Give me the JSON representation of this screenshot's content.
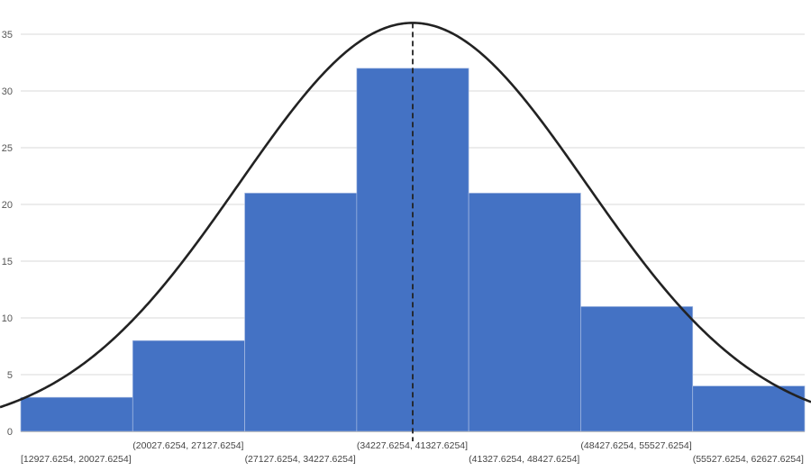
{
  "chart_data": {
    "type": "bar",
    "subtype": "histogram-with-normal-curve",
    "title": "",
    "xlabel": "",
    "ylabel": "",
    "ylim": [
      0,
      35
    ],
    "yticks": [
      0,
      5,
      10,
      15,
      20,
      25,
      30,
      35
    ],
    "grid": true,
    "categories": [
      "[12927.6254, 20027.6254]",
      "(20027.6254, 27127.6254]",
      "(27127.6254, 34227.6254]",
      "(34227.6254, 41327.6254]",
      "(41327.6254, 48427.6254]",
      "(48427.6254, 55527.6254]",
      "(55527.6254, 62627.6254]"
    ],
    "values": [
      3,
      8,
      21,
      32,
      21,
      11,
      4
    ],
    "bar_color": "#4472C4",
    "curve": {
      "type": "normal-fit",
      "peak_value": 36,
      "sigma_bins": 1.55,
      "color": "#222222"
    },
    "mean_line": {
      "style": "dashed",
      "color": "#222222"
    }
  }
}
